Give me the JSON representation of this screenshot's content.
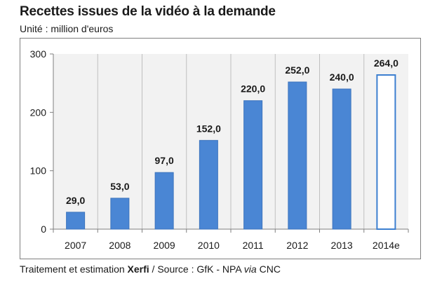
{
  "header": {
    "title": "Recettes issues de la vidéo à la demande",
    "subtitle": "Unité : million d'euros"
  },
  "footer": {
    "prefix": "Traitement et estimation ",
    "brand": "Xerfi",
    "middle": " / Source : GfK - NPA ",
    "via": "via",
    "suffix": " CNC"
  },
  "colors": {
    "bar": "#4a86d4",
    "bar_stroke": "#3d74bd",
    "estimate_fill": "#ffffff",
    "estimate_stroke": "#3c7fd0",
    "plot_bg": "#f2f2f2",
    "grid": "#bfbfbf"
  },
  "chart_data": {
    "type": "bar",
    "title": "Recettes issues de la vidéo à la demande",
    "ylabel": "",
    "xlabel": "",
    "unit": "million d'euros",
    "categories": [
      "2007",
      "2008",
      "2009",
      "2010",
      "2011",
      "2012",
      "2013",
      "2014e"
    ],
    "values": [
      29.0,
      53.0,
      97.0,
      152.0,
      220.0,
      252.0,
      240.0,
      264.0
    ],
    "value_labels": [
      "29,0",
      "53,0",
      "97,0",
      "152,0",
      "220,0",
      "252,0",
      "240,0",
      "264,0"
    ],
    "estimated": [
      false,
      false,
      false,
      false,
      false,
      false,
      false,
      true
    ],
    "ylim": [
      0,
      300
    ],
    "yticks": [
      0,
      100,
      200,
      300
    ],
    "ytick_labels": [
      "0",
      "100",
      "200",
      "300"
    ],
    "grid": "vertical category separators",
    "legend": "none"
  }
}
